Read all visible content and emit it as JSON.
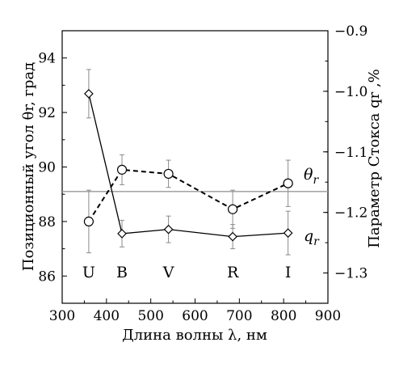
{
  "chart_data": {
    "type": "line",
    "xlabel": "Длина волны λ, нм",
    "ylabel_left": "Позиционный угол θr, град",
    "ylabel_right": "Параметр Стокса qr ,%",
    "xlim": [
      300,
      900
    ],
    "ylim_left": [
      85,
      95
    ],
    "ylim_right": [
      -1.35,
      -0.9
    ],
    "xticks": [
      "300",
      "400",
      "500",
      "600",
      "700",
      "800",
      "900"
    ],
    "yticks_left": [
      "86",
      "88",
      "90",
      "92",
      "94"
    ],
    "yticks_right": [
      "−1.3",
      "−1.2",
      "−1.1",
      "−1.0",
      "−0.9"
    ],
    "bands": [
      {
        "label": "U",
        "x": 360
      },
      {
        "label": "B",
        "x": 435
      },
      {
        "label": "V",
        "x": 540
      },
      {
        "label": "R",
        "x": 685
      },
      {
        "label": "I",
        "x": 810
      }
    ],
    "reference_line_theta": 89.1,
    "series": [
      {
        "name": "θr",
        "axis": "left",
        "marker": "circle",
        "line": "dashed",
        "x": [
          360,
          435,
          540,
          685,
          810
        ],
        "y": [
          88.0,
          89.9,
          89.75,
          88.45,
          89.4
        ],
        "err": [
          1.15,
          0.55,
          0.5,
          0.7,
          0.85
        ]
      },
      {
        "name": "qr",
        "axis": "right",
        "marker": "diamond",
        "line": "solid",
        "x": [
          360,
          435,
          540,
          685,
          810
        ],
        "y": [
          -1.004,
          -1.235,
          -1.228,
          -1.24,
          -1.234
        ],
        "err": [
          0.04,
          0.022,
          0.022,
          0.02,
          0.036
        ]
      }
    ],
    "series_labels": {
      "theta": {
        "sym": "θ",
        "sub": "r"
      },
      "q": {
        "sym": "q",
        "sub": "r"
      }
    },
    "colors": {
      "axes": "#000000",
      "reference_line": "#9a9a9a",
      "error_bar": "#8a8a8a"
    }
  }
}
